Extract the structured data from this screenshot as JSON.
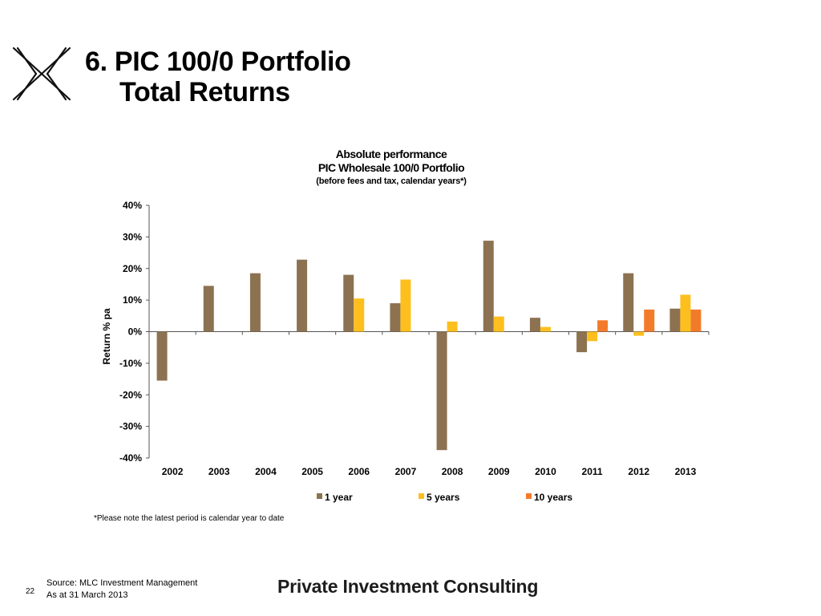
{
  "slide": {
    "title_line1": "6. PIC 100/0 Portfolio",
    "title_line2": "Total Returns",
    "footnote": "*Please note the latest period is calendar year to date",
    "page_number": "22",
    "source_line1": "Source: MLC Investment Management",
    "source_line2": "As at 31 March 2013",
    "brand": "Private Investment Consulting"
  },
  "chart_data": {
    "type": "bar",
    "title": "Absolute performance",
    "subtitle": "PIC Wholesale 100/0 Portfolio",
    "subtitle2": "(before fees and tax, calendar years*)",
    "xlabel": "",
    "ylabel": "Return % pa",
    "ylim": [
      -40,
      40
    ],
    "y_ticks": [
      40,
      30,
      20,
      10,
      0,
      -10,
      -20,
      -30,
      -40
    ],
    "y_tick_labels": [
      "40%",
      "30%",
      "20%",
      "10%",
      "0%",
      "-10%",
      "-20%",
      "-30%",
      "-40%"
    ],
    "categories": [
      "2002",
      "2003",
      "2004",
      "2005",
      "2006",
      "2007",
      "2008",
      "2009",
      "2010",
      "2011",
      "2012",
      "2013"
    ],
    "series": [
      {
        "name": "1 year",
        "color": "#8c7251",
        "values": [
          -15.5,
          14.5,
          18.5,
          22.8,
          18.0,
          9.0,
          -37.5,
          28.8,
          4.4,
          -6.5,
          18.5,
          7.3
        ]
      },
      {
        "name": "5 years",
        "color": "#fcbf1e",
        "values": [
          null,
          null,
          null,
          null,
          10.5,
          16.5,
          3.2,
          4.8,
          1.5,
          -3.0,
          -1.3,
          11.7
        ]
      },
      {
        "name": "10 years",
        "color": "#f27b2a",
        "values": [
          null,
          null,
          null,
          null,
          null,
          null,
          null,
          null,
          null,
          3.6,
          7.0,
          7.0
        ]
      }
    ],
    "grid": false,
    "legend_position": "bottom"
  }
}
